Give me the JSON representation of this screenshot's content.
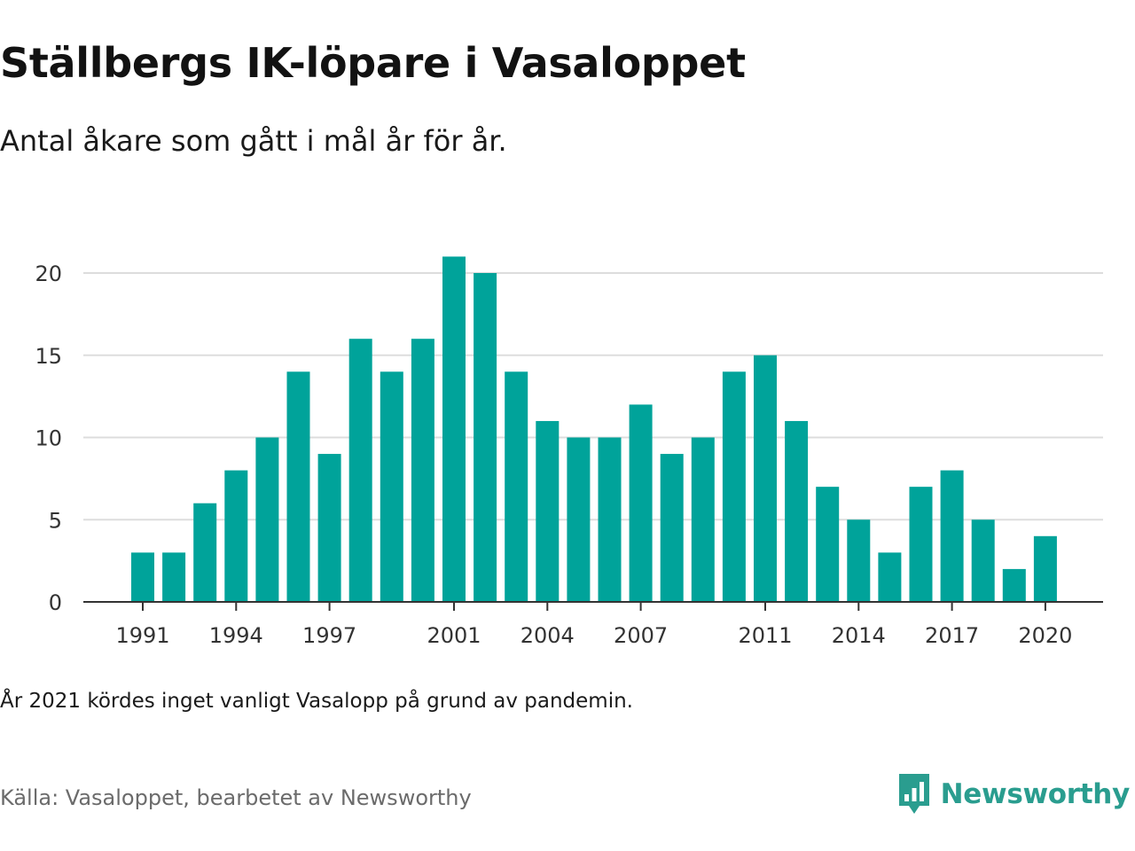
{
  "header": {
    "title": "Ställbergs IK-löpare i Vasaloppet",
    "subtitle": "Antal åkare som gått i mål år för år."
  },
  "footer": {
    "note": "År 2021 kördes inget vanligt Vasalopp på grund av pandemin.",
    "source": "Källa: Vasaloppet, bearbetet av Newsworthy",
    "brand": "Newsworthy",
    "brand_icon": "newsworthy-logo-icon"
  },
  "colors": {
    "bar": "#00a39a",
    "grid": "#dddddd",
    "axis": "#333333",
    "brand": "#2a9d8f"
  },
  "chart_data": {
    "type": "bar",
    "title": "Ställbergs IK-löpare i Vasaloppet",
    "subtitle": "Antal åkare som gått i mål år för år.",
    "xlabel": "",
    "ylabel": "",
    "ylim": [
      0,
      22
    ],
    "yticks": [
      0,
      5,
      10,
      15,
      20
    ],
    "xticks": [
      1991,
      1994,
      1997,
      2001,
      2004,
      2007,
      2011,
      2014,
      2017,
      2020
    ],
    "grid": true,
    "categories": [
      1991,
      1992,
      1993,
      1994,
      1995,
      1996,
      1997,
      1998,
      1999,
      2000,
      2001,
      2002,
      2003,
      2004,
      2005,
      2006,
      2007,
      2008,
      2009,
      2010,
      2011,
      2012,
      2013,
      2014,
      2015,
      2016,
      2017,
      2018,
      2019,
      2020
    ],
    "values": [
      3,
      3,
      6,
      8,
      10,
      14,
      9,
      16,
      14,
      16,
      21,
      20,
      14,
      11,
      10,
      10,
      12,
      9,
      10,
      14,
      15,
      11,
      7,
      5,
      3,
      7,
      8,
      5,
      2,
      4
    ]
  }
}
